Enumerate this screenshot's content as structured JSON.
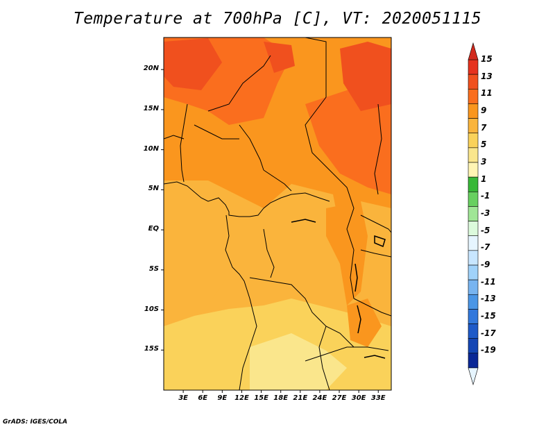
{
  "title": "Temperature at 700hPa [C], VT: 2020051115",
  "footer": "GrADS: IGES/COLA",
  "map": {
    "lon_range": [
      0,
      35
    ],
    "lat_range": [
      -20,
      24
    ],
    "lat_ticks": [
      {
        "label": "20N",
        "value": 20
      },
      {
        "label": "15N",
        "value": 15
      },
      {
        "label": "10N",
        "value": 10
      },
      {
        "label": "5N",
        "value": 5
      },
      {
        "label": "EQ",
        "value": 0
      },
      {
        "label": "5S",
        "value": -5
      },
      {
        "label": "10S",
        "value": -10
      },
      {
        "label": "15S",
        "value": -15
      }
    ],
    "lon_ticks": [
      {
        "label": "3E",
        "value": 3
      },
      {
        "label": "6E",
        "value": 6
      },
      {
        "label": "9E",
        "value": 9
      },
      {
        "label": "12E",
        "value": 12
      },
      {
        "label": "15E",
        "value": 15
      },
      {
        "label": "18E",
        "value": 18
      },
      {
        "label": "21E",
        "value": 21
      },
      {
        "label": "24E",
        "value": 24
      },
      {
        "label": "27E",
        "value": 27
      },
      {
        "label": "30E",
        "value": 30
      },
      {
        "label": "33E",
        "value": 33
      }
    ]
  },
  "colorbar": {
    "labels": [
      "15",
      "13",
      "11",
      "9",
      "7",
      "5",
      "3",
      "1",
      "-1",
      "-3",
      "-5",
      "-7",
      "-9",
      "-11",
      "-13",
      "-15",
      "-17",
      "-19"
    ],
    "colors": [
      "#e6321e",
      "#f0501e",
      "#fa6e1e",
      "#fa961e",
      "#fab43c",
      "#fad25a",
      "#fae68c",
      "#fff5b4",
      "#38b838",
      "#68d060",
      "#a0e696",
      "#dcfadc",
      "#e6f5ff",
      "#c8e6ff",
      "#a0d2fa",
      "#78b4f0",
      "#4b96e6",
      "#3278dc",
      "#1e5ac8",
      "#1446b4",
      "#0a2896"
    ],
    "top_arrow_color": "#d22a1e",
    "bottom_arrow_color": "#e6f5ff"
  }
}
